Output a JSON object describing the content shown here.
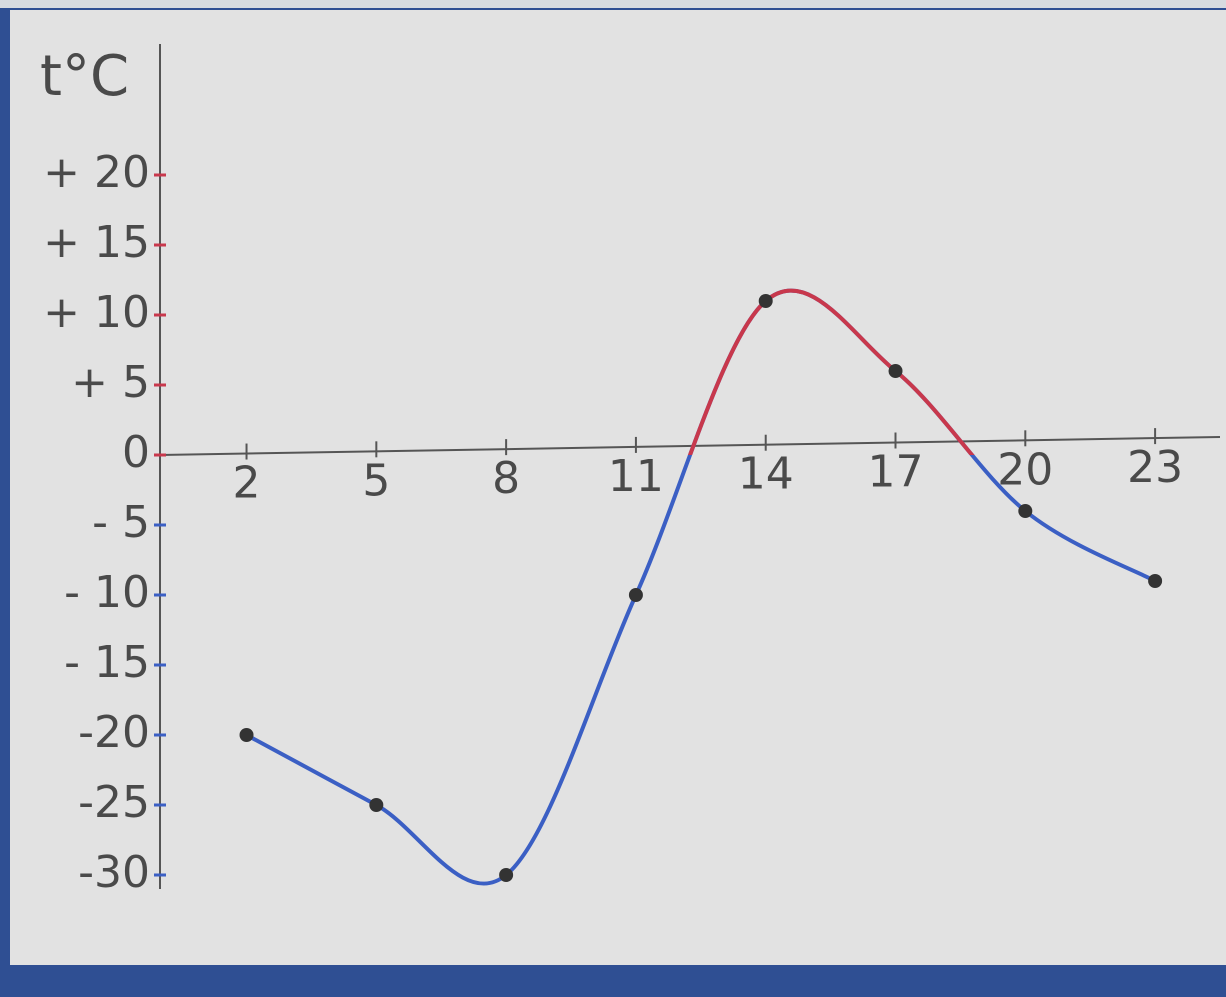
{
  "chart_data": {
    "type": "line",
    "y_label": "t°C",
    "x": [
      2,
      5,
      8,
      11,
      14,
      17,
      20,
      23
    ],
    "series": [
      {
        "color": "#3b5fc4",
        "positive_color": "#c8384c",
        "values": [
          -20,
          -25,
          -30,
          -10,
          11,
          6,
          -4,
          -9
        ]
      }
    ],
    "xlim": [
      0,
      24.5
    ],
    "xticks": [
      2,
      5,
      8,
      11,
      14,
      17,
      20,
      23
    ],
    "ylim": [
      -31,
      29
    ],
    "yticks": [
      {
        "value": 20,
        "label": "+ 20"
      },
      {
        "value": 15,
        "label": "+ 15"
      },
      {
        "value": 10,
        "label": "+ 10"
      },
      {
        "value": 5,
        "label": "+ 5"
      },
      0,
      {
        "value": -5,
        "label": "- 5"
      },
      {
        "value": -10,
        "label": "- 10"
      },
      {
        "value": -15,
        "label": "- 15"
      },
      -20,
      -25,
      -30
    ],
    "grid": false
  }
}
